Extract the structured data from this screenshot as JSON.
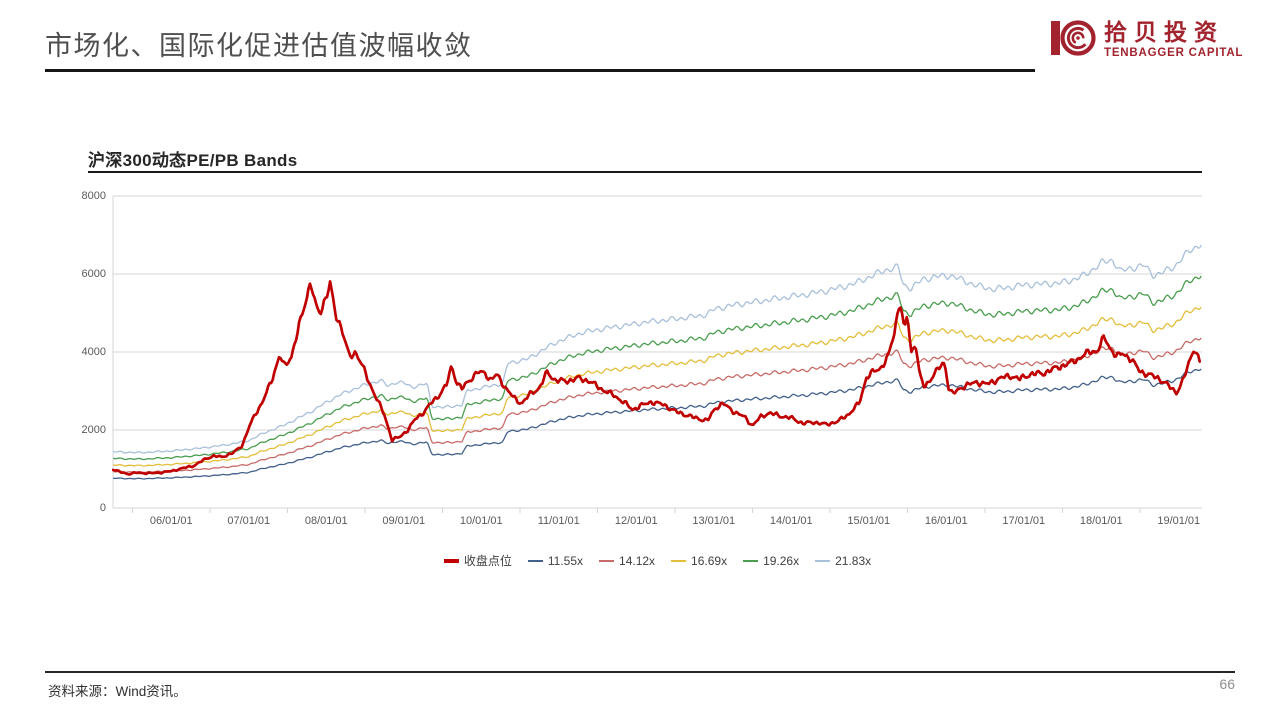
{
  "slide": {
    "title": "市场化、国际化促进估值波幅收敛",
    "source_note": "资料来源：Wind资讯。",
    "page_number": "66"
  },
  "logo": {
    "name_cn": "拾贝投资",
    "name_en": "TENBAGGER CAPITAL",
    "color": "#A2232D"
  },
  "colors": {
    "grid": "#D6D6D6",
    "axis_text": "#595959",
    "close_line": "#C00000"
  },
  "chart_data": {
    "type": "line",
    "title": "沪深300动态PE/PB Bands",
    "xlabel": "",
    "ylabel": "",
    "ylim": [
      0,
      8000
    ],
    "y_ticks": [
      0,
      2000,
      4000,
      6000,
      8000
    ],
    "x_tick_labels": [
      "06/01/01",
      "07/01/01",
      "08/01/01",
      "09/01/01",
      "10/01/01",
      "11/01/01",
      "12/01/01",
      "13/01/01",
      "14/01/01",
      "15/01/01",
      "16/01/01",
      "17/01/01",
      "18/01/01",
      "19/01/01"
    ],
    "x_tick_years": [
      2006,
      2007,
      2008,
      2009,
      2010,
      2011,
      2012,
      2013,
      2014,
      2015,
      2016,
      2017,
      2018,
      2019
    ],
    "x_unit": "decimal_year",
    "x_range": [
      2005.25,
      2019.3
    ],
    "grid": true,
    "legend_position": "bottom",
    "legend": [
      {
        "label": "收盘点位",
        "color": "#C00000",
        "thick": true
      },
      {
        "label": "11.55x",
        "color": "#44618C",
        "thick": false
      },
      {
        "label": "14.12x",
        "color": "#C96C69",
        "thick": false
      },
      {
        "label": "16.69x",
        "color": "#E3BE3C",
        "thick": false
      },
      {
        "label": "19.26x",
        "color": "#4A9E4F",
        "thick": false
      },
      {
        "label": "21.83x",
        "color": "#A9C0DB",
        "thick": false
      }
    ],
    "series": [
      {
        "name": "收盘点位",
        "color": "#C00000",
        "points": [
          [
            2005.25,
            985
          ],
          [
            2005.33,
            930
          ],
          [
            2005.45,
            870
          ],
          [
            2005.55,
            905
          ],
          [
            2005.7,
            890
          ],
          [
            2005.85,
            905
          ],
          [
            2006,
            945
          ],
          [
            2006.15,
            1020
          ],
          [
            2006.3,
            1090
          ],
          [
            2006.45,
            1270
          ],
          [
            2006.55,
            1330
          ],
          [
            2006.65,
            1310
          ],
          [
            2006.8,
            1410
          ],
          [
            2006.92,
            1620
          ],
          [
            2007,
            2050
          ],
          [
            2007.08,
            2400
          ],
          [
            2007.18,
            2720
          ],
          [
            2007.3,
            3300
          ],
          [
            2007.4,
            3920
          ],
          [
            2007.46,
            3620
          ],
          [
            2007.55,
            3890
          ],
          [
            2007.65,
            4660
          ],
          [
            2007.72,
            5200
          ],
          [
            2007.8,
            5820
          ],
          [
            2007.86,
            5180
          ],
          [
            2007.92,
            4990
          ],
          [
            2008,
            5450
          ],
          [
            2008.05,
            5740
          ],
          [
            2008.12,
            4950
          ],
          [
            2008.2,
            4620
          ],
          [
            2008.3,
            3850
          ],
          [
            2008.38,
            4000
          ],
          [
            2008.45,
            3730
          ],
          [
            2008.55,
            3220
          ],
          [
            2008.65,
            2820
          ],
          [
            2008.75,
            2380
          ],
          [
            2008.85,
            1750
          ],
          [
            2008.95,
            1820
          ],
          [
            2009.05,
            2000
          ],
          [
            2009.15,
            2280
          ],
          [
            2009.25,
            2440
          ],
          [
            2009.35,
            2680
          ],
          [
            2009.45,
            2880
          ],
          [
            2009.55,
            3150
          ],
          [
            2009.62,
            3650
          ],
          [
            2009.68,
            3230
          ],
          [
            2009.75,
            3060
          ],
          [
            2009.85,
            3280
          ],
          [
            2009.95,
            3480
          ],
          [
            2010.05,
            3460
          ],
          [
            2010.12,
            3280
          ],
          [
            2010.2,
            3420
          ],
          [
            2010.3,
            3120
          ],
          [
            2010.42,
            2820
          ],
          [
            2010.52,
            2680
          ],
          [
            2010.62,
            2900
          ],
          [
            2010.75,
            3080
          ],
          [
            2010.85,
            3480
          ],
          [
            2010.95,
            3280
          ],
          [
            2011.1,
            3250
          ],
          [
            2011.25,
            3330
          ],
          [
            2011.4,
            3250
          ],
          [
            2011.55,
            3050
          ],
          [
            2011.7,
            2900
          ],
          [
            2011.85,
            2700
          ],
          [
            2011.95,
            2520
          ],
          [
            2012.05,
            2620
          ],
          [
            2012.2,
            2720
          ],
          [
            2012.35,
            2650
          ],
          [
            2012.5,
            2480
          ],
          [
            2012.65,
            2380
          ],
          [
            2012.8,
            2290
          ],
          [
            2012.92,
            2240
          ],
          [
            2013.02,
            2560
          ],
          [
            2013.12,
            2680
          ],
          [
            2013.25,
            2480
          ],
          [
            2013.4,
            2330
          ],
          [
            2013.5,
            2110
          ],
          [
            2013.6,
            2330
          ],
          [
            2013.72,
            2440
          ],
          [
            2013.85,
            2360
          ],
          [
            2014,
            2310
          ],
          [
            2014.15,
            2170
          ],
          [
            2014.3,
            2200
          ],
          [
            2014.45,
            2140
          ],
          [
            2014.6,
            2220
          ],
          [
            2014.75,
            2420
          ],
          [
            2014.88,
            2700
          ],
          [
            2014.97,
            3350
          ],
          [
            2015.05,
            3480
          ],
          [
            2015.15,
            3580
          ],
          [
            2015.25,
            3880
          ],
          [
            2015.33,
            4480
          ],
          [
            2015.4,
            5350
          ],
          [
            2015.46,
            4550
          ],
          [
            2015.5,
            4950
          ],
          [
            2015.55,
            3950
          ],
          [
            2015.6,
            4280
          ],
          [
            2015.66,
            3380
          ],
          [
            2015.72,
            3080
          ],
          [
            2015.8,
            3320
          ],
          [
            2015.9,
            3580
          ],
          [
            2015.98,
            3720
          ],
          [
            2016.03,
            3100
          ],
          [
            2016.08,
            2920
          ],
          [
            2016.15,
            3020
          ],
          [
            2016.25,
            3150
          ],
          [
            2016.4,
            3220
          ],
          [
            2016.55,
            3180
          ],
          [
            2016.7,
            3340
          ],
          [
            2016.85,
            3380
          ],
          [
            2016.95,
            3310
          ],
          [
            2017.1,
            3440
          ],
          [
            2017.25,
            3450
          ],
          [
            2017.4,
            3580
          ],
          [
            2017.55,
            3680
          ],
          [
            2017.7,
            3820
          ],
          [
            2017.85,
            4010
          ],
          [
            2017.95,
            4030
          ],
          [
            2018.04,
            4380
          ],
          [
            2018.12,
            4080
          ],
          [
            2018.2,
            3880
          ],
          [
            2018.28,
            3970
          ],
          [
            2018.38,
            3820
          ],
          [
            2018.5,
            3510
          ],
          [
            2018.6,
            3420
          ],
          [
            2018.72,
            3350
          ],
          [
            2018.82,
            3210
          ],
          [
            2018.9,
            3080
          ],
          [
            2018.97,
            2960
          ],
          [
            2019.06,
            3280
          ],
          [
            2019.14,
            3780
          ],
          [
            2019.2,
            4120
          ],
          [
            2019.24,
            3900
          ],
          [
            2019.28,
            3680
          ]
        ]
      }
    ],
    "bands": {
      "description": "PE bands: value = eps_base × multiple",
      "eps_base_points": [
        [
          2005.25,
          66
        ],
        [
          2005.6,
          65
        ],
        [
          2006,
          67
        ],
        [
          2006.35,
          70
        ],
        [
          2006.7,
          74
        ],
        [
          2007,
          79
        ],
        [
          2007.1,
          84
        ],
        [
          2007.3,
          92
        ],
        [
          2007.45,
          97
        ],
        [
          2007.6,
          104
        ],
        [
          2007.8,
          113
        ],
        [
          2008,
          124
        ],
        [
          2008.2,
          134
        ],
        [
          2008.45,
          143
        ],
        [
          2008.7,
          150
        ],
        [
          2008.8,
          143
        ],
        [
          2008.9,
          148
        ],
        [
          2009,
          147
        ],
        [
          2009.1,
          142
        ],
        [
          2009.3,
          146
        ],
        [
          2009.36,
          120
        ],
        [
          2009.5,
          118
        ],
        [
          2009.75,
          121
        ],
        [
          2009.82,
          138
        ],
        [
          2010,
          141
        ],
        [
          2010.15,
          144
        ],
        [
          2010.28,
          146
        ],
        [
          2010.34,
          170
        ],
        [
          2010.6,
          175
        ],
        [
          2010.8,
          186
        ],
        [
          2011,
          196
        ],
        [
          2011.3,
          206
        ],
        [
          2011.6,
          211
        ],
        [
          2011.9,
          215
        ],
        [
          2012.1,
          218
        ],
        [
          2012.4,
          221
        ],
        [
          2012.6,
          223
        ],
        [
          2012.9,
          227
        ],
        [
          2013.02,
          234
        ],
        [
          2013.3,
          239
        ],
        [
          2013.6,
          243
        ],
        [
          2013.9,
          247
        ],
        [
          2014.2,
          251
        ],
        [
          2014.5,
          256
        ],
        [
          2014.8,
          263
        ],
        [
          2015,
          271
        ],
        [
          2015.2,
          279
        ],
        [
          2015.38,
          283
        ],
        [
          2015.45,
          262
        ],
        [
          2015.55,
          258
        ],
        [
          2015.7,
          269
        ],
        [
          2015.9,
          272
        ],
        [
          2016.05,
          273
        ],
        [
          2016.2,
          268
        ],
        [
          2016.4,
          261
        ],
        [
          2016.6,
          257
        ],
        [
          2016.8,
          259
        ],
        [
          2017,
          262
        ],
        [
          2017.2,
          263
        ],
        [
          2017.45,
          264
        ],
        [
          2017.6,
          267
        ],
        [
          2017.8,
          274
        ],
        [
          2018,
          288
        ],
        [
          2018.15,
          291
        ],
        [
          2018.25,
          278
        ],
        [
          2018.4,
          282
        ],
        [
          2018.55,
          285
        ],
        [
          2018.68,
          273
        ],
        [
          2018.8,
          277
        ],
        [
          2018.95,
          284
        ],
        [
          2019.05,
          294
        ],
        [
          2019.15,
          303
        ],
        [
          2019.25,
          308
        ],
        [
          2019.3,
          311
        ]
      ],
      "multiples": [
        {
          "name": "11.55x",
          "multiple": 11.55,
          "color": "#44618C"
        },
        {
          "name": "14.12x",
          "multiple": 14.12,
          "color": "#C96C69"
        },
        {
          "name": "16.69x",
          "multiple": 16.69,
          "color": "#E3BE3C"
        },
        {
          "name": "19.26x",
          "multiple": 19.26,
          "color": "#4A9E4F"
        },
        {
          "name": "21.83x",
          "multiple": 21.83,
          "color": "#A9C0DB"
        }
      ]
    }
  }
}
